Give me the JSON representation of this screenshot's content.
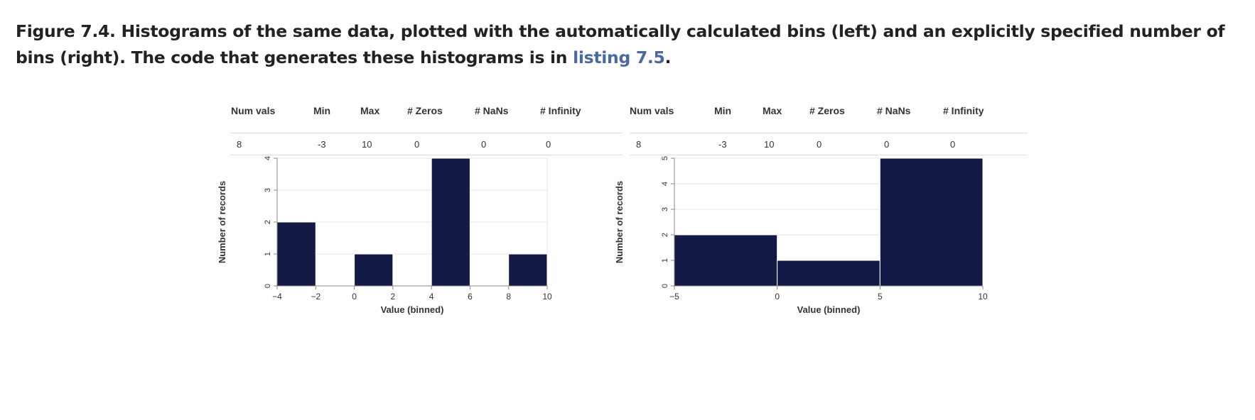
{
  "caption": {
    "text": "Figure 7.4. Histograms of the same data, plotted with the automatically calculated bins (left) and an explicitly specified number of bins (right). The code that generates these histograms is in ",
    "link": "listing 7.5",
    "end": "."
  },
  "stats_headers": [
    "Num vals",
    "Min",
    "Max",
    "# Zeros",
    "# NaNs",
    "# Infinity"
  ],
  "stats_values": [
    "8",
    "-3",
    "10",
    "0",
    "0",
    "0"
  ],
  "chart_data": [
    {
      "type": "bar",
      "xlabel": "Value (binned)",
      "ylabel": "Number of records",
      "bins": [
        [
          -4,
          -2
        ],
        [
          -2,
          0
        ],
        [
          0,
          2
        ],
        [
          2,
          4
        ],
        [
          4,
          6
        ],
        [
          6,
          8
        ],
        [
          8,
          10
        ]
      ],
      "values": [
        2,
        0,
        1,
        0,
        4,
        0,
        1
      ],
      "xticks": [
        -4,
        -2,
        0,
        2,
        4,
        6,
        8,
        10
      ],
      "yticks": [
        0,
        1,
        2,
        3,
        4
      ],
      "xlim": [
        -4,
        10
      ],
      "ylim": [
        0,
        4
      ],
      "bar_color": "#131a45"
    },
    {
      "type": "bar",
      "xlabel": "Value (binned)",
      "ylabel": "Number of records",
      "bins": [
        [
          -5,
          0
        ],
        [
          0,
          5
        ],
        [
          5,
          10
        ]
      ],
      "values": [
        2,
        1,
        5
      ],
      "xticks": [
        -5,
        0,
        5,
        10
      ],
      "yticks": [
        0,
        1,
        2,
        3,
        4,
        5
      ],
      "xlim": [
        -5,
        10
      ],
      "ylim": [
        0,
        5
      ],
      "bar_color": "#131a45"
    }
  ]
}
